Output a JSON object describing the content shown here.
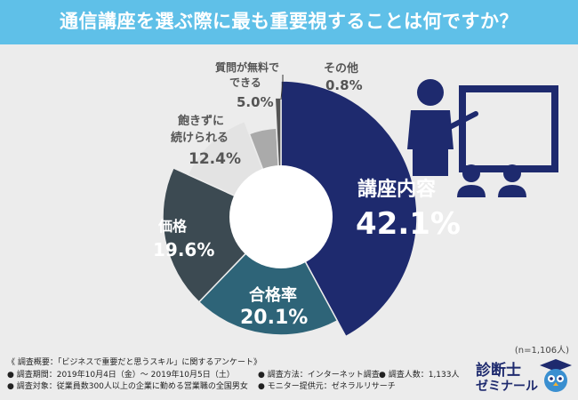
{
  "title": "通信講座を選ぶ際に最も重要視することは何ですか？",
  "sample_note": "(n=1,106人)",
  "survey": {
    "overview": "《 調査概要：「ビジネスで重要だと思うスキル」に関するアンケート》",
    "period": "● 調査期間：2019年10月4日（金）～ 2019年10月5日（土）",
    "method": "● 調査方法：インターネット調査",
    "count": "● 調査人数：1,133人",
    "target": "● 調査対象：従業員数300人以上の企業に勤める営業職の全国男女",
    "provider": "● モニター提供元：ゼネラルリサーチ"
  },
  "logo": {
    "line1": "診断士",
    "line2": "ゼミナール"
  },
  "chart_data": {
    "type": "pie",
    "donut": true,
    "slices": [
      {
        "label": "講座内容",
        "value": 42.1,
        "display": "42.1%",
        "color": "#1e2a6e"
      },
      {
        "label": "合格率",
        "value": 20.1,
        "display": "20.1%",
        "color": "#2e6478"
      },
      {
        "label": "価格",
        "value": 19.6,
        "display": "19.6%",
        "color": "#3c4a52"
      },
      {
        "label": "飽きずに続けられる",
        "value": 12.4,
        "display": "12.4%",
        "color": "#e3e3e3"
      },
      {
        "label": "質問が無料でできる",
        "value": 5.0,
        "display": "5.0%",
        "color": "#aaaaaa"
      },
      {
        "label": "その他",
        "value": 0.8,
        "display": "0.8%",
        "color": "#555555"
      }
    ],
    "start": "top",
    "direction": "clockwise"
  }
}
